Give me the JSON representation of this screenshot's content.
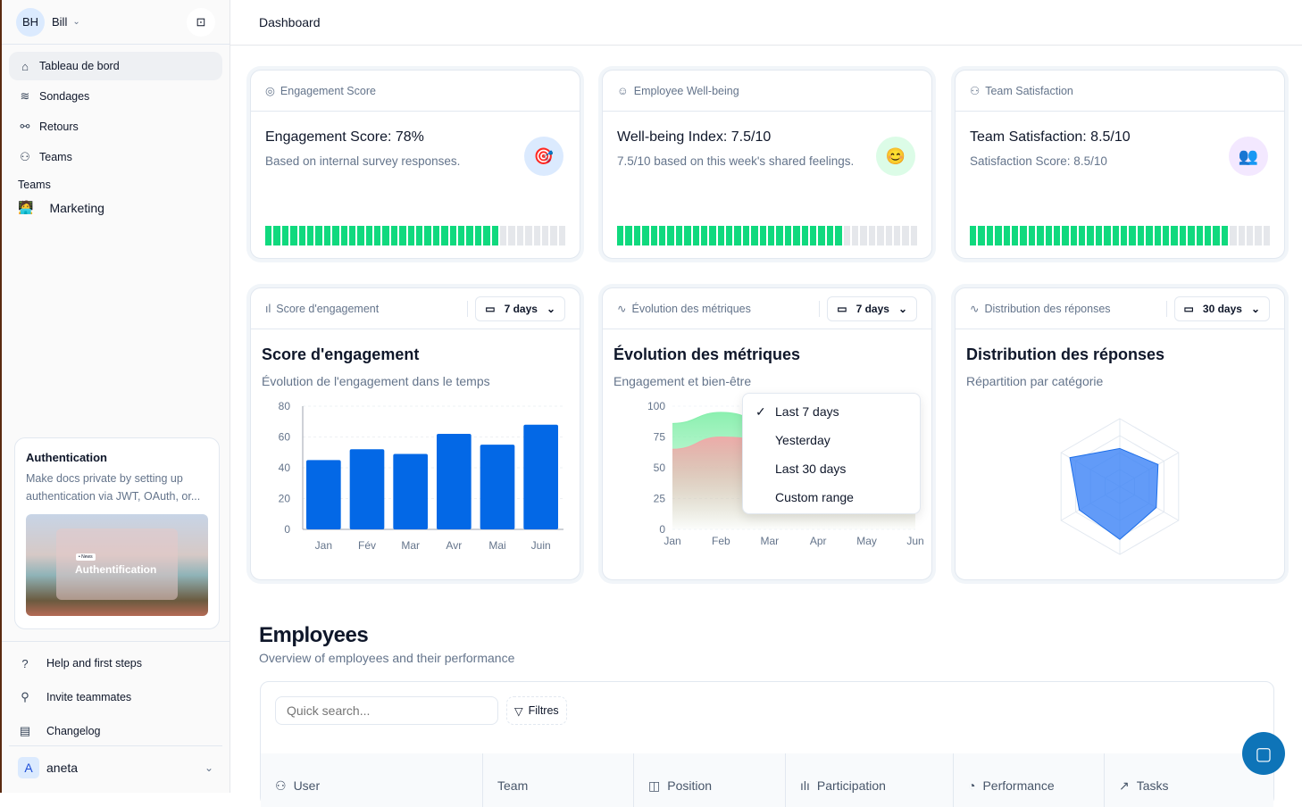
{
  "sidebar": {
    "user": {
      "initials": "BH",
      "name": "Bill"
    },
    "nav": [
      {
        "label": "Tableau de bord",
        "icon": "home-icon"
      },
      {
        "label": "Sondages",
        "icon": "layers-icon"
      },
      {
        "label": "Retours",
        "icon": "plug-icon"
      },
      {
        "label": "Teams",
        "icon": "users-icon"
      }
    ],
    "teams_heading": "Teams",
    "teams": [
      {
        "label": "Marketing",
        "emoji": "🧑‍💻"
      }
    ],
    "promo": {
      "title": "Authentication",
      "text": "Make docs private by setting up authentication via JWT, OAuth, or...",
      "image_tag": "• News",
      "image_title": "Authentification"
    },
    "bottom": [
      {
        "label": "Help and first steps",
        "icon": "help-circle-icon"
      },
      {
        "label": "Invite teammates",
        "icon": "user-plus-icon"
      },
      {
        "label": "Changelog",
        "icon": "newspaper-icon"
      }
    ],
    "account": {
      "initial": "A",
      "name": "aneta"
    }
  },
  "header": {
    "title": "Dashboard"
  },
  "stats": [
    {
      "header": "Engagement Score",
      "title": "Engagement Score: 78%",
      "subtitle": "Based on internal survey responses.",
      "emoji": "🎯",
      "emoji_bg": "#dbeafe",
      "progress": 78
    },
    {
      "header": "Employee Well-being",
      "title": "Well-being Index: 7.5/10",
      "subtitle": "7.5/10 based on this week's shared feelings.",
      "emoji": "😊",
      "emoji_bg": "#dcfce7",
      "progress": 75
    },
    {
      "header": "Team Satisfaction",
      "title": "Team Satisfaction: 8.5/10",
      "subtitle": "Satisfaction Score: 8.5/10",
      "emoji": "👥",
      "emoji_bg": "#f3e8ff",
      "progress": 85
    }
  ],
  "charts": [
    {
      "header": "Score d'engagement",
      "range": "7 days",
      "title": "Score d'engagement",
      "subtitle": "Évolution de l'engagement dans le temps"
    },
    {
      "header": "Évolution des métriques",
      "range": "7 days",
      "title": "Évolution des métriques",
      "subtitle": "Engagement et bien-être"
    },
    {
      "header": "Distribution des réponses",
      "range": "30 days",
      "title": "Distribution des réponses",
      "subtitle": "Répartition par catégorie"
    }
  ],
  "dropdown": {
    "items": [
      "Last 7 days",
      "Yesterday",
      "Last 30 days",
      "Custom range"
    ],
    "selected": 0
  },
  "chart_data": [
    {
      "type": "bar",
      "categories": [
        "Jan",
        "Fév",
        "Mar",
        "Avr",
        "Mai",
        "Juin"
      ],
      "values": [
        45,
        52,
        49,
        62,
        55,
        68
      ],
      "ylim": [
        0,
        80
      ],
      "yticks": [
        0,
        20,
        40,
        60,
        80
      ],
      "color": "#0368e6",
      "grid": true
    },
    {
      "type": "area",
      "categories": [
        "Jan",
        "Feb",
        "Mar",
        "Apr",
        "May",
        "Jun"
      ],
      "ylim": [
        0,
        100
      ],
      "yticks": [
        0,
        25,
        50,
        75,
        100
      ],
      "grid": true,
      "series": [
        {
          "values": [
            86,
            95,
            88,
            61,
            72,
            75
          ],
          "color": "#86efac"
        },
        {
          "values": [
            65,
            75,
            73,
            60,
            68,
            70
          ],
          "color": "#f0a8a8"
        }
      ]
    },
    {
      "type": "radar",
      "values": [
        56,
        65,
        62,
        78,
        69,
        85
      ],
      "max": 100,
      "rings": 4,
      "color": "#3b82f6"
    }
  ],
  "employees": {
    "title": "Employees",
    "subtitle": "Overview of employees and their performance",
    "search_placeholder": "Quick search...",
    "filter_label": "Filtres",
    "columns": [
      {
        "label": "User",
        "icon": "users-icon"
      },
      {
        "label": "Team",
        "icon": ""
      },
      {
        "label": "Position",
        "icon": "briefcase-icon"
      },
      {
        "label": "Participation",
        "icon": "bar-chart-icon"
      },
      {
        "label": "Performance",
        "icon": "pie-chart-icon"
      },
      {
        "label": "Tasks",
        "icon": "trending-up-icon"
      }
    ]
  }
}
